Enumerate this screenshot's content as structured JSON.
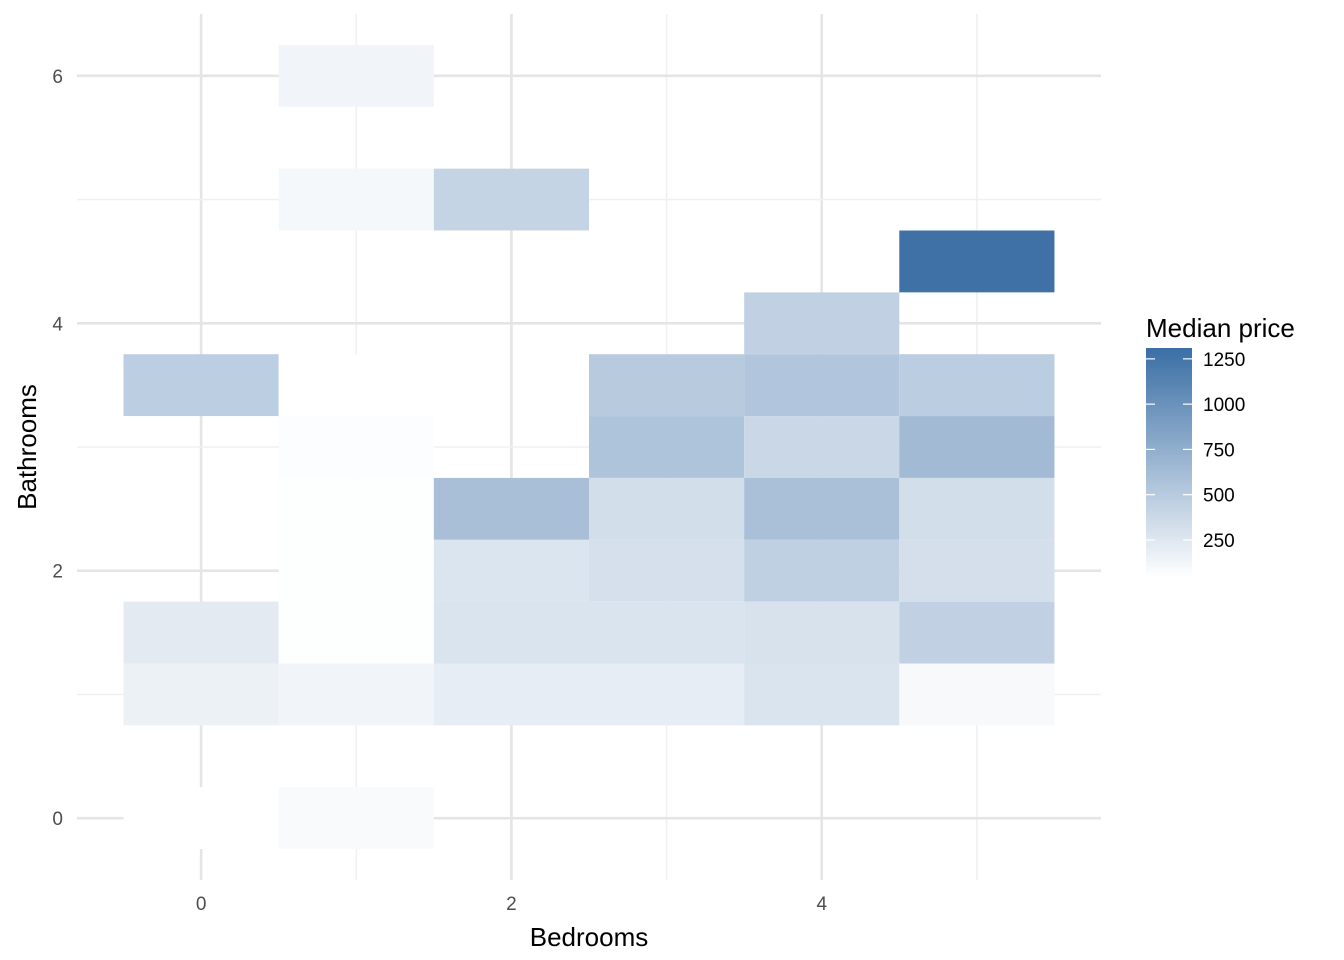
{
  "chart_data": {
    "type": "heatmap",
    "xlabel": "Bedrooms",
    "ylabel": "Bathrooms",
    "xlim": [
      -0.8,
      5.8
    ],
    "ylim": [
      -0.5,
      6.5
    ],
    "x_ticks": [
      0,
      2,
      4
    ],
    "y_ticks": [
      0,
      2,
      4,
      6
    ],
    "grid": true,
    "cell_width": 1,
    "cell_height": 0.5,
    "cells": [
      {
        "x": 1,
        "y": 6.0,
        "value": 130
      },
      {
        "x": 1,
        "y": 5.0,
        "value": 105
      },
      {
        "x": 2,
        "y": 5.0,
        "value": 420
      },
      {
        "x": 5,
        "y": 4.5,
        "value": 1280
      },
      {
        "x": 4,
        "y": 4.0,
        "value": 440
      },
      {
        "x": 0,
        "y": 3.5,
        "value": 470
      },
      {
        "x": 1,
        "y": 3.5,
        "value": 30
      },
      {
        "x": 3,
        "y": 3.5,
        "value": 500
      },
      {
        "x": 4,
        "y": 3.5,
        "value": 540
      },
      {
        "x": 5,
        "y": 3.5,
        "value": 480
      },
      {
        "x": 1,
        "y": 3.0,
        "value": 60
      },
      {
        "x": 3,
        "y": 3.0,
        "value": 560
      },
      {
        "x": 4,
        "y": 3.0,
        "value": 390
      },
      {
        "x": 5,
        "y": 3.0,
        "value": 640
      },
      {
        "x": 1,
        "y": 2.5,
        "value": 50
      },
      {
        "x": 2,
        "y": 2.5,
        "value": 600
      },
      {
        "x": 3,
        "y": 2.5,
        "value": 330
      },
      {
        "x": 4,
        "y": 2.5,
        "value": 590
      },
      {
        "x": 5,
        "y": 2.5,
        "value": 330
      },
      {
        "x": 1,
        "y": 2.0,
        "value": 50
      },
      {
        "x": 2,
        "y": 2.0,
        "value": 270
      },
      {
        "x": 3,
        "y": 2.0,
        "value": 310
      },
      {
        "x": 4,
        "y": 2.0,
        "value": 450
      },
      {
        "x": 5,
        "y": 2.0,
        "value": 320
      },
      {
        "x": 0,
        "y": 1.5,
        "value": 220
      },
      {
        "x": 1,
        "y": 1.5,
        "value": 50
      },
      {
        "x": 2,
        "y": 1.5,
        "value": 280
      },
      {
        "x": 3,
        "y": 1.5,
        "value": 280
      },
      {
        "x": 4,
        "y": 1.5,
        "value": 290
      },
      {
        "x": 5,
        "y": 1.5,
        "value": 440
      },
      {
        "x": 0,
        "y": 1.0,
        "value": 160
      },
      {
        "x": 1,
        "y": 1.0,
        "value": 130
      },
      {
        "x": 2,
        "y": 1.0,
        "value": 200
      },
      {
        "x": 3,
        "y": 1.0,
        "value": 200
      },
      {
        "x": 4,
        "y": 1.0,
        "value": 280
      },
      {
        "x": 5,
        "y": 1.0,
        "value": 90
      },
      {
        "x": 0,
        "y": 0.0,
        "value": 35
      },
      {
        "x": 1,
        "y": 0.0,
        "value": 80
      }
    ],
    "legend": {
      "title": "Median price",
      "position": "right",
      "breaks": [
        1250,
        1000,
        750,
        500,
        250
      ],
      "range": [
        40,
        1310
      ],
      "low_color": "#ffffff",
      "high_color": "#3a6ea5"
    }
  },
  "colors": {
    "grid_major": "#e5e5e5",
    "grid_minor": "#f0f0f0",
    "tick_text": "#4d4d4d"
  }
}
